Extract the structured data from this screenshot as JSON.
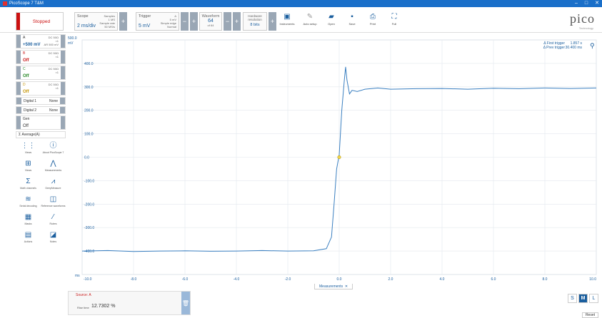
{
  "window": {
    "title": "PicoScope 7 T&M",
    "minimize": "–",
    "maximize": "□",
    "close": "✕"
  },
  "run": {
    "label": "Stopped"
  },
  "scope": {
    "caption": "Scope",
    "value": "2 ms/div",
    "samples_label": "Samples",
    "samples_val": "1 MS",
    "rate_label": "Sample rate",
    "rate_val": "50 MS/s"
  },
  "trigger": {
    "caption": "Trigger",
    "value": "5 mV",
    "source": "A",
    "level_label": "5 mV",
    "type": "Simple edge",
    "mode": "Normal"
  },
  "waveform": {
    "caption": "Waveform",
    "value": "64",
    "sub": "of 64"
  },
  "hwres": {
    "caption": "Hardware resolution",
    "value": "8 bits"
  },
  "tools": [
    {
      "label": "Instruments",
      "icon": "instruments-icon"
    },
    {
      "label": "Auto setup",
      "icon": "wrench-icon"
    },
    {
      "label": "Open",
      "icon": "folder-icon"
    },
    {
      "label": "Save",
      "icon": "save-icon"
    },
    {
      "label": "Print",
      "icon": "print-icon"
    },
    {
      "label": "Full",
      "icon": "fullscreen-icon"
    }
  ],
  "logo": {
    "text": "pico",
    "sub": "Technology"
  },
  "channels": [
    {
      "name": "A",
      "value": "+500 mV",
      "info1": "DC 50Ω",
      "info2": "×1",
      "info3": "AR 500 mV",
      "color": "#1a5e9e"
    },
    {
      "name": "B",
      "value": "Off",
      "info1": "DC 50Ω",
      "info2": "×1",
      "info3": "",
      "color": "#c22"
    },
    {
      "name": "C",
      "value": "Off",
      "info1": "DC 50Ω",
      "info2": "×1",
      "info3": "",
      "color": "#2a8a2a"
    },
    {
      "name": "D",
      "value": "Off",
      "info1": "DC 50Ω",
      "info2": "×1",
      "info3": "",
      "color": "#c89a10"
    }
  ],
  "digital": [
    {
      "name": "Digital 1",
      "value": "None"
    },
    {
      "name": "Digital 2",
      "value": "None"
    },
    {
      "name": "Gen",
      "value": "Off"
    }
  ],
  "average": {
    "label": "Σ  Average(A)"
  },
  "side_tools": [
    {
      "label": "Views",
      "icon": "views-icon"
    },
    {
      "label": "About PicoScope 7",
      "icon": "info-icon"
    },
    {
      "label": "Views",
      "icon": "layout-icon"
    },
    {
      "label": "Measurements",
      "icon": "measure-icon"
    },
    {
      "label": "Math channels",
      "icon": "sigma-icon"
    },
    {
      "label": "DeepMeasure",
      "icon": "deepmeasure-icon"
    },
    {
      "label": "Serial decoding",
      "icon": "serial-icon"
    },
    {
      "label": "Reference waveforms",
      "icon": "reference-icon"
    },
    {
      "label": "Masks",
      "icon": "masks-icon"
    },
    {
      "label": "Rulers",
      "icon": "rulers-icon"
    },
    {
      "label": "Actions",
      "icon": "actions-icon"
    },
    {
      "label": "Notes",
      "icon": "notes-icon"
    }
  ],
  "cursors": {
    "first_label": "Δ First trigger",
    "first_val": "1.857 s",
    "prev_label": "Δ Prev trigger",
    "prev_val": "30.400 ms"
  },
  "bottom": {
    "tab_label": "Measurements",
    "tab_close": "✕",
    "source": "Source: A",
    "meas_name": "Rise time",
    "meas_value": "12.7302 %",
    "sizes": [
      "S",
      "M",
      "L"
    ],
    "reset": "Reset"
  },
  "chart_data": {
    "type": "line",
    "xlim": [
      -10,
      10
    ],
    "ylim": [
      -500,
      500
    ],
    "x_ticks": [
      -10.0,
      -8.0,
      -6.0,
      -4.0,
      -2.0,
      0.0,
      2.0,
      4.0,
      6.0,
      8.0,
      10.0
    ],
    "x_tick_labels": [
      "-10.0",
      "-8.0",
      "-6.0",
      "-4.0",
      "-2.0",
      "0.0",
      "2.0",
      "4.0",
      "6.0",
      "8.0",
      "10.0"
    ],
    "x_unit": "ms",
    "y_ticks": [
      400,
      300,
      200,
      100,
      0,
      -100,
      -200,
      -300,
      -400
    ],
    "y_tick_labels": [
      "400.0",
      "300.0",
      "200.0",
      "100.0",
      "0.0",
      "-100.0",
      "-200.0",
      "-300.0",
      "-400.0"
    ],
    "y_axis_range_label": "500.0",
    "y_unit": "mV",
    "grid": true,
    "series": [
      {
        "color": "#3a7fc0",
        "x": [
          -10,
          -9,
          -8,
          -7,
          -6,
          -5,
          -4,
          -3,
          -2,
          -1,
          -0.5,
          -0.3,
          -0.2,
          -0.1,
          0,
          0.1,
          0.2,
          0.25,
          0.3,
          0.4,
          0.5,
          0.7,
          1,
          1.5,
          2,
          3,
          4,
          5,
          6,
          7,
          8,
          9,
          10
        ],
        "y": [
          -400,
          -398,
          -402,
          -400,
          -399,
          -401,
          -400,
          -398,
          -400,
          -399,
          -390,
          -340,
          -200,
          -50,
          10,
          200,
          330,
          385,
          330,
          270,
          285,
          280,
          290,
          295,
          290,
          292,
          293,
          290,
          294,
          292,
          295,
          293,
          295
        ]
      }
    ],
    "trigger_marker": {
      "x": 0,
      "y": 0
    }
  }
}
